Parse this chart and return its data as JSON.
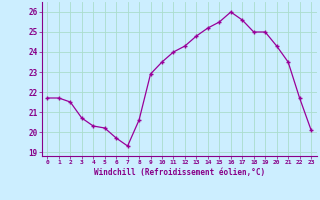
{
  "x": [
    0,
    1,
    2,
    3,
    4,
    5,
    6,
    7,
    8,
    9,
    10,
    11,
    12,
    13,
    14,
    15,
    16,
    17,
    18,
    19,
    20,
    21,
    22,
    23
  ],
  "y": [
    21.7,
    21.7,
    21.5,
    20.7,
    20.3,
    20.2,
    19.7,
    19.3,
    20.6,
    22.9,
    23.5,
    24.0,
    24.3,
    24.8,
    25.2,
    25.5,
    26.0,
    25.6,
    25.0,
    25.0,
    24.3,
    23.5,
    21.7,
    20.1
  ],
  "line_color": "#990099",
  "marker": "+",
  "bg_color": "#cceeff",
  "grid_color": "#aaddcc",
  "ylabel_ticks": [
    19,
    20,
    21,
    22,
    23,
    24,
    25,
    26
  ],
  "ylim": [
    18.8,
    26.5
  ],
  "xlim": [
    -0.5,
    23.5
  ],
  "xlabel": "Windchill (Refroidissement éolien,°C)",
  "tick_color": "#880088",
  "label_color": "#880088",
  "axis_color": "#880088"
}
